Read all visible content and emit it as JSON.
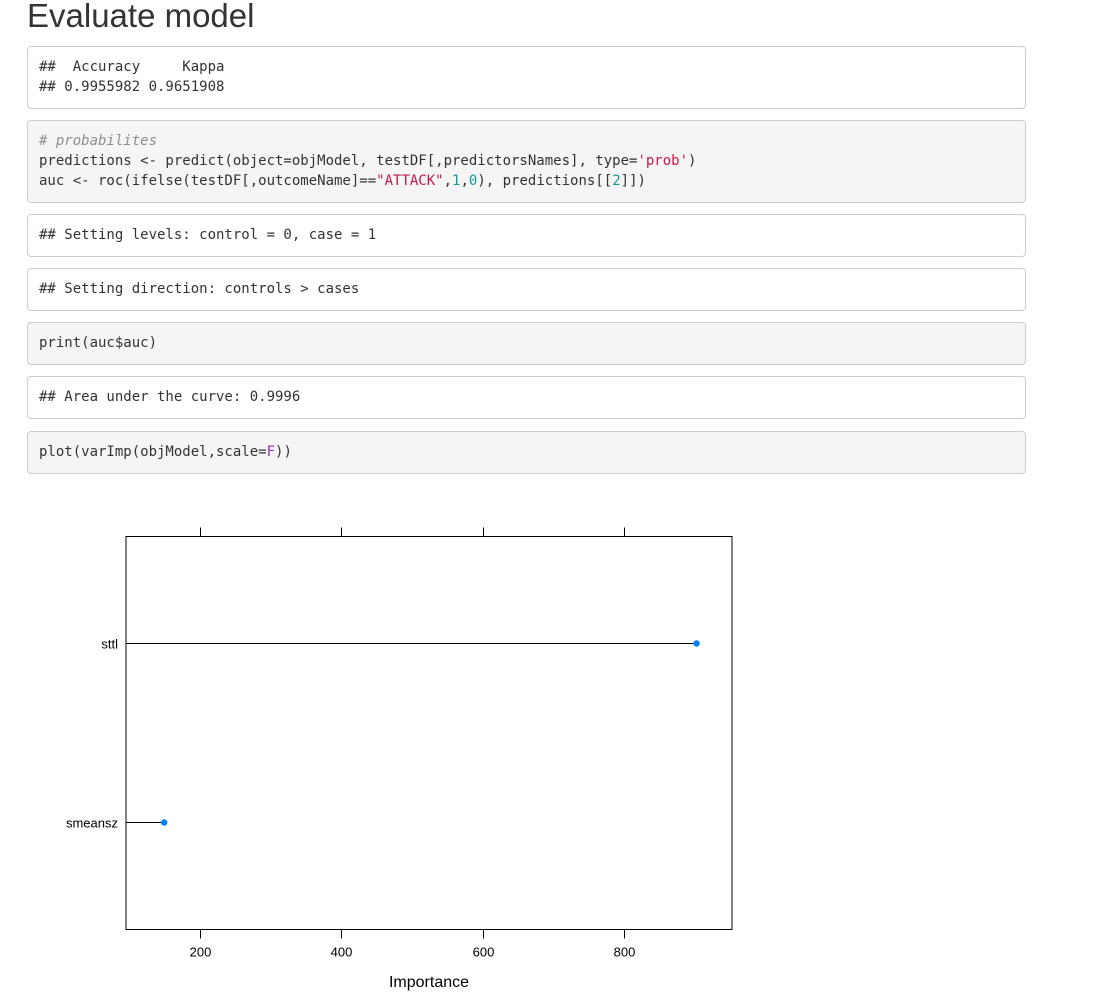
{
  "heading": "Evaluate model",
  "out1": {
    "line1": "##  Accuracy     Kappa",
    "line2": "## 0.9955982 0.9651908"
  },
  "code1": {
    "comment": "# probabilites",
    "l2a": "predictions <- predict(object=objModel, testDF[,predictorsNames], type=",
    "l2str": "'prob'",
    "l2b": ")",
    "l3a": "auc <- roc(ifelse(testDF[,outcomeName]==",
    "l3str": "\"ATTACK\"",
    "l3c1": ",",
    "l3n1": "1",
    "l3c2": ",",
    "l3n2": "0",
    "l3b": "), predictions[[",
    "l3n3": "2",
    "l3e": "]])"
  },
  "out2": "## Setting levels: control = 0, case = 1",
  "out3": "## Setting direction: controls > cases",
  "code2": "print(auc$auc)",
  "out4": "## Area under the curve: 0.9996",
  "code3": {
    "a": "plot(varImp(objModel,scale=",
    "kw": "F",
    "b": "))"
  },
  "chart_data": {
    "type": "scatter",
    "style": "dot plot with lines from left axis",
    "categories": [
      "sttl",
      "smeansz"
    ],
    "values": [
      902,
      150
    ],
    "xlabel": "Importance",
    "ylabel": "",
    "xlim": [
      96,
      952
    ],
    "xticks": [
      200,
      400,
      600,
      800
    ],
    "grid": false,
    "point_color": "#0080ff"
  }
}
